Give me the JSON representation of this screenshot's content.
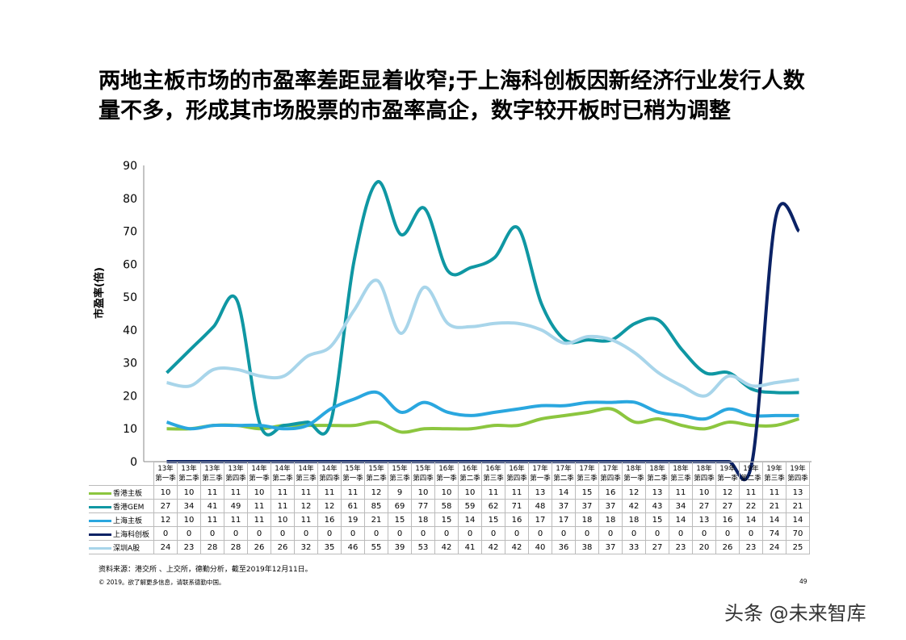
{
  "title": "两地主板市场的市盈率差距显着收窄;于上海科创板因新经济行业发行人数量不多，形成其市场股票的市盈率高企，数字较开板时已稍为调整",
  "chart_data": {
    "type": "line",
    "ylabel": "市盈率(倍)",
    "ylim": [
      0,
      90
    ],
    "yticks": [
      0,
      10,
      20,
      30,
      40,
      50,
      60,
      70,
      80,
      90
    ],
    "grid": false,
    "legend": "table-bottom",
    "categories": [
      [
        "13年",
        "第一季"
      ],
      [
        "13年",
        "第二季"
      ],
      [
        "13年",
        "第三季"
      ],
      [
        "13年",
        "第四季"
      ],
      [
        "14年",
        "第一季"
      ],
      [
        "14年",
        "第二季"
      ],
      [
        "14年",
        "第三季"
      ],
      [
        "14年",
        "第四季"
      ],
      [
        "15年",
        "第一季"
      ],
      [
        "15年",
        "第二季"
      ],
      [
        "15年",
        "第三季"
      ],
      [
        "15年",
        "第四季"
      ],
      [
        "16年",
        "第一季"
      ],
      [
        "16年",
        "第二季"
      ],
      [
        "16年",
        "第三季"
      ],
      [
        "16年",
        "第四季"
      ],
      [
        "17年",
        "第一季"
      ],
      [
        "17年",
        "第二季"
      ],
      [
        "17年",
        "第三季"
      ],
      [
        "17年",
        "第四季"
      ],
      [
        "18年",
        "第一季"
      ],
      [
        "18年",
        "第二季"
      ],
      [
        "18年",
        "第三季"
      ],
      [
        "18年",
        "第四季"
      ],
      [
        "19年",
        "第一季"
      ],
      [
        "19年",
        "第二季"
      ],
      [
        "19年",
        "第三季"
      ],
      [
        "19年",
        "第四季"
      ]
    ],
    "series": [
      {
        "name": "香港主板",
        "color": "#8cc63f",
        "values": [
          10,
          10,
          11,
          11,
          10,
          11,
          11,
          11,
          11,
          12,
          9,
          10,
          10,
          10,
          11,
          11,
          13,
          14,
          15,
          16,
          12,
          13,
          11,
          10,
          12,
          11,
          11,
          13
        ]
      },
      {
        "name": "香港GEM",
        "color": "#0f97a3",
        "values": [
          27,
          34,
          41,
          49,
          11,
          11,
          12,
          12,
          61,
          85,
          69,
          77,
          58,
          59,
          62,
          71,
          48,
          37,
          37,
          37,
          42,
          43,
          34,
          27,
          27,
          22,
          21,
          21
        ]
      },
      {
        "name": "上海主板",
        "color": "#2aa7df",
        "values": [
          12,
          10,
          11,
          11,
          11,
          10,
          11,
          16,
          19,
          21,
          15,
          18,
          15,
          14,
          15,
          16,
          17,
          17,
          18,
          18,
          18,
          15,
          14,
          13,
          16,
          14,
          14,
          14
        ]
      },
      {
        "name": "上海科创板",
        "color": "#0b2265",
        "values": [
          0,
          0,
          0,
          0,
          0,
          0,
          0,
          0,
          0,
          0,
          0,
          0,
          0,
          0,
          0,
          0,
          0,
          0,
          0,
          0,
          0,
          0,
          0,
          0,
          0,
          0,
          74,
          70
        ]
      },
      {
        "name": "深圳A股",
        "color": "#a8d5ea",
        "values": [
          24,
          23,
          28,
          28,
          26,
          26,
          32,
          35,
          46,
          55,
          39,
          53,
          42,
          41,
          42,
          42,
          40,
          36,
          38,
          37,
          33,
          27,
          23,
          20,
          26,
          23,
          24,
          25
        ]
      }
    ]
  },
  "footer": {
    "source": "资料来源：港交所 、上交所，德勤分析，截至2019年12月11日。",
    "copyright": "© 2019。欲了解更多信息，请联系德勤中国。",
    "page": "49",
    "watermark": "头条 @未来智库"
  }
}
